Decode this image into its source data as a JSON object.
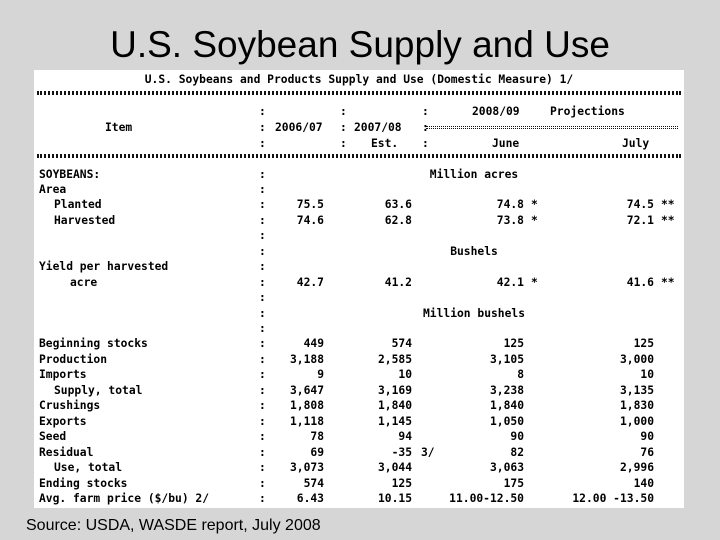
{
  "slide": {
    "title": "U.S. Soybean Supply and Use",
    "source": "Source: USDA, WASDE report, July 2008"
  },
  "report": {
    "title": "U.S. Soybeans and Products Supply and Use (Domestic Measure) 1/",
    "header": {
      "projections_year": "2008/09",
      "projections_label": "Projections",
      "item_label": "Item",
      "years": [
        "2006/07",
        "2007/08"
      ],
      "est_label": "Est.",
      "months": [
        "June",
        "July"
      ]
    },
    "rows": [
      {
        "label": "SOYBEANS:",
        "colon": ":",
        "unit": "Million acres",
        "indent": 0
      },
      {
        "label": "Area",
        "colon": ":",
        "indent": 0
      },
      {
        "label": "Planted",
        "colon": ":",
        "indent": 1,
        "v1": "75.5",
        "v2": "63.6",
        "v3": "74.8",
        "m3": "*",
        "v4": "74.5",
        "m4": "**"
      },
      {
        "label": "Harvested",
        "colon": ":",
        "indent": 1,
        "v1": "74.6",
        "v2": "62.8",
        "v3": "73.8",
        "m3": "*",
        "v4": "72.1",
        "m4": "**"
      },
      {
        "label": "",
        "colon": ":",
        "indent": 0
      },
      {
        "label": "",
        "colon": ":",
        "unit": "Bushels",
        "indent": 0
      },
      {
        "label": "Yield per harvested",
        "colon": ":",
        "indent": 0
      },
      {
        "label": "acre",
        "colon": ":",
        "indent": 2,
        "v1": "42.7",
        "v2": "41.2",
        "v3": "42.1",
        "m3": "*",
        "v4": "41.6",
        "m4": "**"
      },
      {
        "label": "",
        "colon": ":",
        "indent": 0
      },
      {
        "label": "",
        "colon": ":",
        "unit": "Million bushels",
        "indent": 0
      },
      {
        "label": "",
        "colon": ":",
        "indent": 0
      },
      {
        "label": "Beginning stocks",
        "colon": ":",
        "indent": 0,
        "v1": "449",
        "v2": "574",
        "v3": "125",
        "v4": "125"
      },
      {
        "label": "Production",
        "colon": ":",
        "indent": 0,
        "v1": "3,188",
        "v2": "2,585",
        "v3": "3,105",
        "v4": "3,000"
      },
      {
        "label": "Imports",
        "colon": ":",
        "indent": 0,
        "v1": "9",
        "v2": "10",
        "v3": "8",
        "v4": "10"
      },
      {
        "label": "Supply, total",
        "colon": ":",
        "indent": 1,
        "v1": "3,647",
        "v2": "3,169",
        "v3": "3,238",
        "v4": "3,135"
      },
      {
        "label": "Crushings",
        "colon": ":",
        "indent": 0,
        "v1": "1,808",
        "v2": "1,840",
        "v3": "1,840",
        "v4": "1,830"
      },
      {
        "label": "Exports",
        "colon": ":",
        "indent": 0,
        "v1": "1,118",
        "v2": "1,145",
        "v3": "1,050",
        "v4": "1,000"
      },
      {
        "label": "Seed",
        "colon": ":",
        "indent": 0,
        "v1": "78",
        "v2": "94",
        "v3": "90",
        "v4": "90"
      },
      {
        "label": "Residual",
        "colon": ":",
        "indent": 0,
        "v1": "69",
        "v2": "-35",
        "n2": "3/",
        "v3": "82",
        "v4": "76"
      },
      {
        "label": "Use, total",
        "colon": ":",
        "indent": 1,
        "v1": "3,073",
        "v2": "3,044",
        "v3": "3,063",
        "v4": "2,996"
      },
      {
        "label": "Ending stocks",
        "colon": ":",
        "indent": 0,
        "v1": "574",
        "v2": "125",
        "v3": "175",
        "v4": "140"
      },
      {
        "label": "Avg. farm price ($/bu) 2/",
        "colon": ":",
        "indent": 0,
        "v1": "6.43",
        "v2": "10.15",
        "v3": "11.00-12.50",
        "v4": "12.00 -13.50"
      }
    ]
  }
}
